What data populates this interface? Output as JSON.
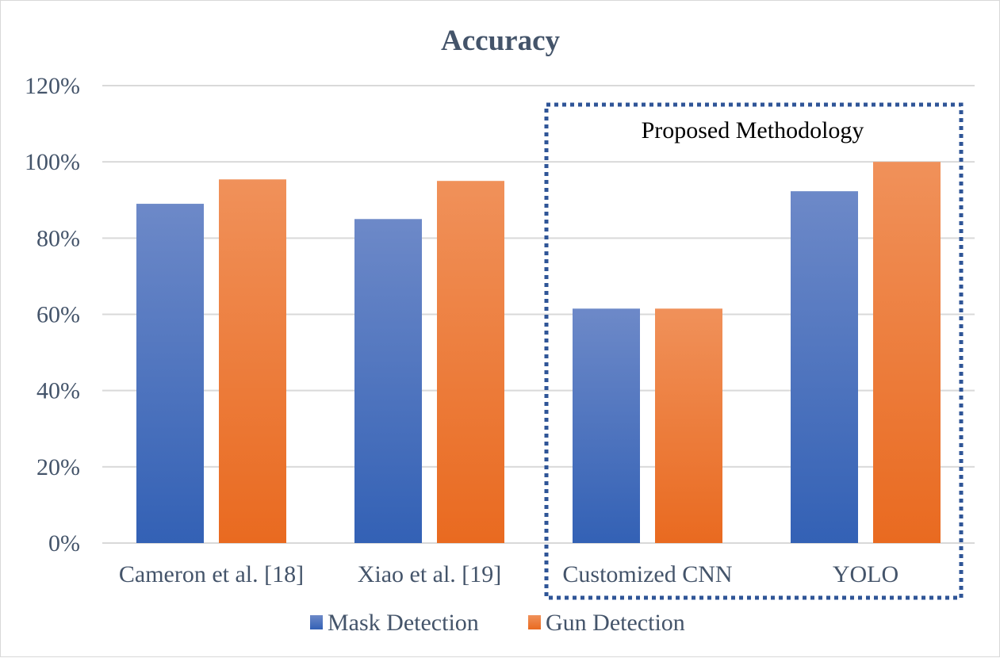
{
  "chart_data": {
    "type": "bar",
    "title": "Accuracy",
    "xlabel": "",
    "ylabel": "",
    "categories": [
      "Cameron et al. [18]",
      "Xiao et al. [19]",
      "Customized CNN",
      "YOLO"
    ],
    "series": [
      {
        "name": "Mask Detection",
        "values": [
          89,
          85,
          61.5,
          92.3
        ],
        "color": "#4472c4"
      },
      {
        "name": "Gun Detection",
        "values": [
          95.4,
          95,
          61.5,
          100
        ],
        "color": "#ed7d31"
      }
    ],
    "ylim": [
      0,
      120
    ],
    "yticks": [
      0,
      20,
      40,
      60,
      80,
      100,
      120
    ],
    "ytick_labels": [
      "0%",
      "20%",
      "40%",
      "60%",
      "80%",
      "100%",
      "120%"
    ],
    "grid": true,
    "legend_position": "bottom",
    "annotation": {
      "text": "Proposed Methodology",
      "categories_spanned": [
        "Customized CNN",
        "YOLO"
      ],
      "border_color": "#2f5597"
    }
  }
}
